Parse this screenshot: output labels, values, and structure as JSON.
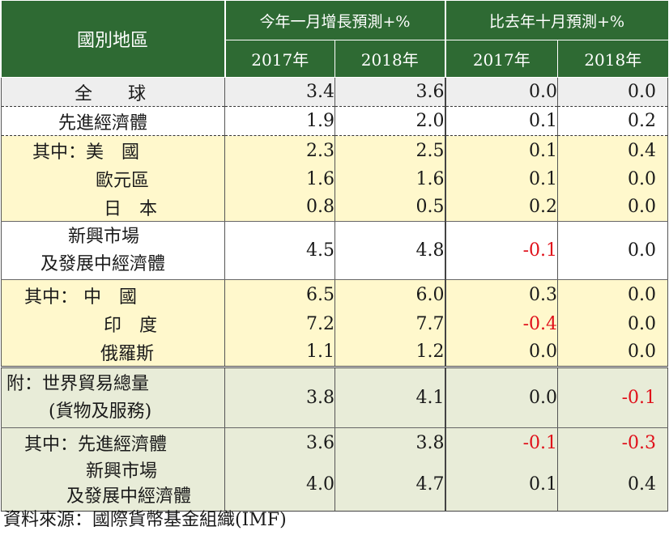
{
  "header": {
    "region": "國別地區",
    "group_current": "今年一月增長預測+%",
    "group_diff": "比去年十月預測+%",
    "years": [
      "2017年",
      "2018年",
      "2017年",
      "2018年"
    ]
  },
  "rows": [
    {
      "label": "全　　球",
      "v1": "3.4",
      "v2": "3.6",
      "v3": "0.0",
      "v4": "0.0"
    },
    {
      "label": "先進經濟體",
      "v1": "1.9",
      "v2": "2.0",
      "v3": "0.1",
      "v4": "0.2"
    },
    {
      "label": "其中：美　國",
      "v1": "2.3",
      "v2": "2.5",
      "v3": "0.1",
      "v4": "0.4"
    },
    {
      "label": "歐元區",
      "v1": "1.6",
      "v2": "1.6",
      "v3": "0.1",
      "v4": "0.0"
    },
    {
      "label": "日　本",
      "v1": "0.8",
      "v2": "0.5",
      "v3": "0.2",
      "v4": "0.0"
    },
    {
      "label_line1": "新興市場",
      "label_line2": "及發展中經濟體",
      "v1": "4.5",
      "v2": "4.8",
      "v3": "-0.1",
      "v4": "0.0"
    },
    {
      "label": "其中：  中　國",
      "v1": "6.5",
      "v2": "6.0",
      "v3": "0.3",
      "v4": "0.0"
    },
    {
      "label": "印　度",
      "v1": "7.2",
      "v2": "7.7",
      "v3": "-0.4",
      "v4": "0.0"
    },
    {
      "label": "俄羅斯",
      "v1": "1.1",
      "v2": "1.2",
      "v3": "0.0",
      "v4": "0.0"
    },
    {
      "label_line1": "附：世界貿易總量",
      "label_line2": "(貨物及服務)",
      "v1": "3.8",
      "v2": "4.1",
      "v3": "0.0",
      "v4": "-0.1"
    },
    {
      "label": "其中：先進經濟體",
      "v1": "3.6",
      "v2": "3.8",
      "v3": "-0.1",
      "v4": "-0.3"
    },
    {
      "label_line1": "新興市場",
      "label_line2": "及發展中經濟體",
      "v1": "4.0",
      "v2": "4.7",
      "v3": "0.1",
      "v4": "0.4"
    }
  ],
  "source": "資料來源：國際貨幣基金組織(IMF)",
  "colors": {
    "header_bg": "#2e6a33",
    "negative": "#e0101a",
    "row_gray": "#eeeeee",
    "row_yellow": "#fff8cc",
    "row_green": "#e8ecd8"
  }
}
